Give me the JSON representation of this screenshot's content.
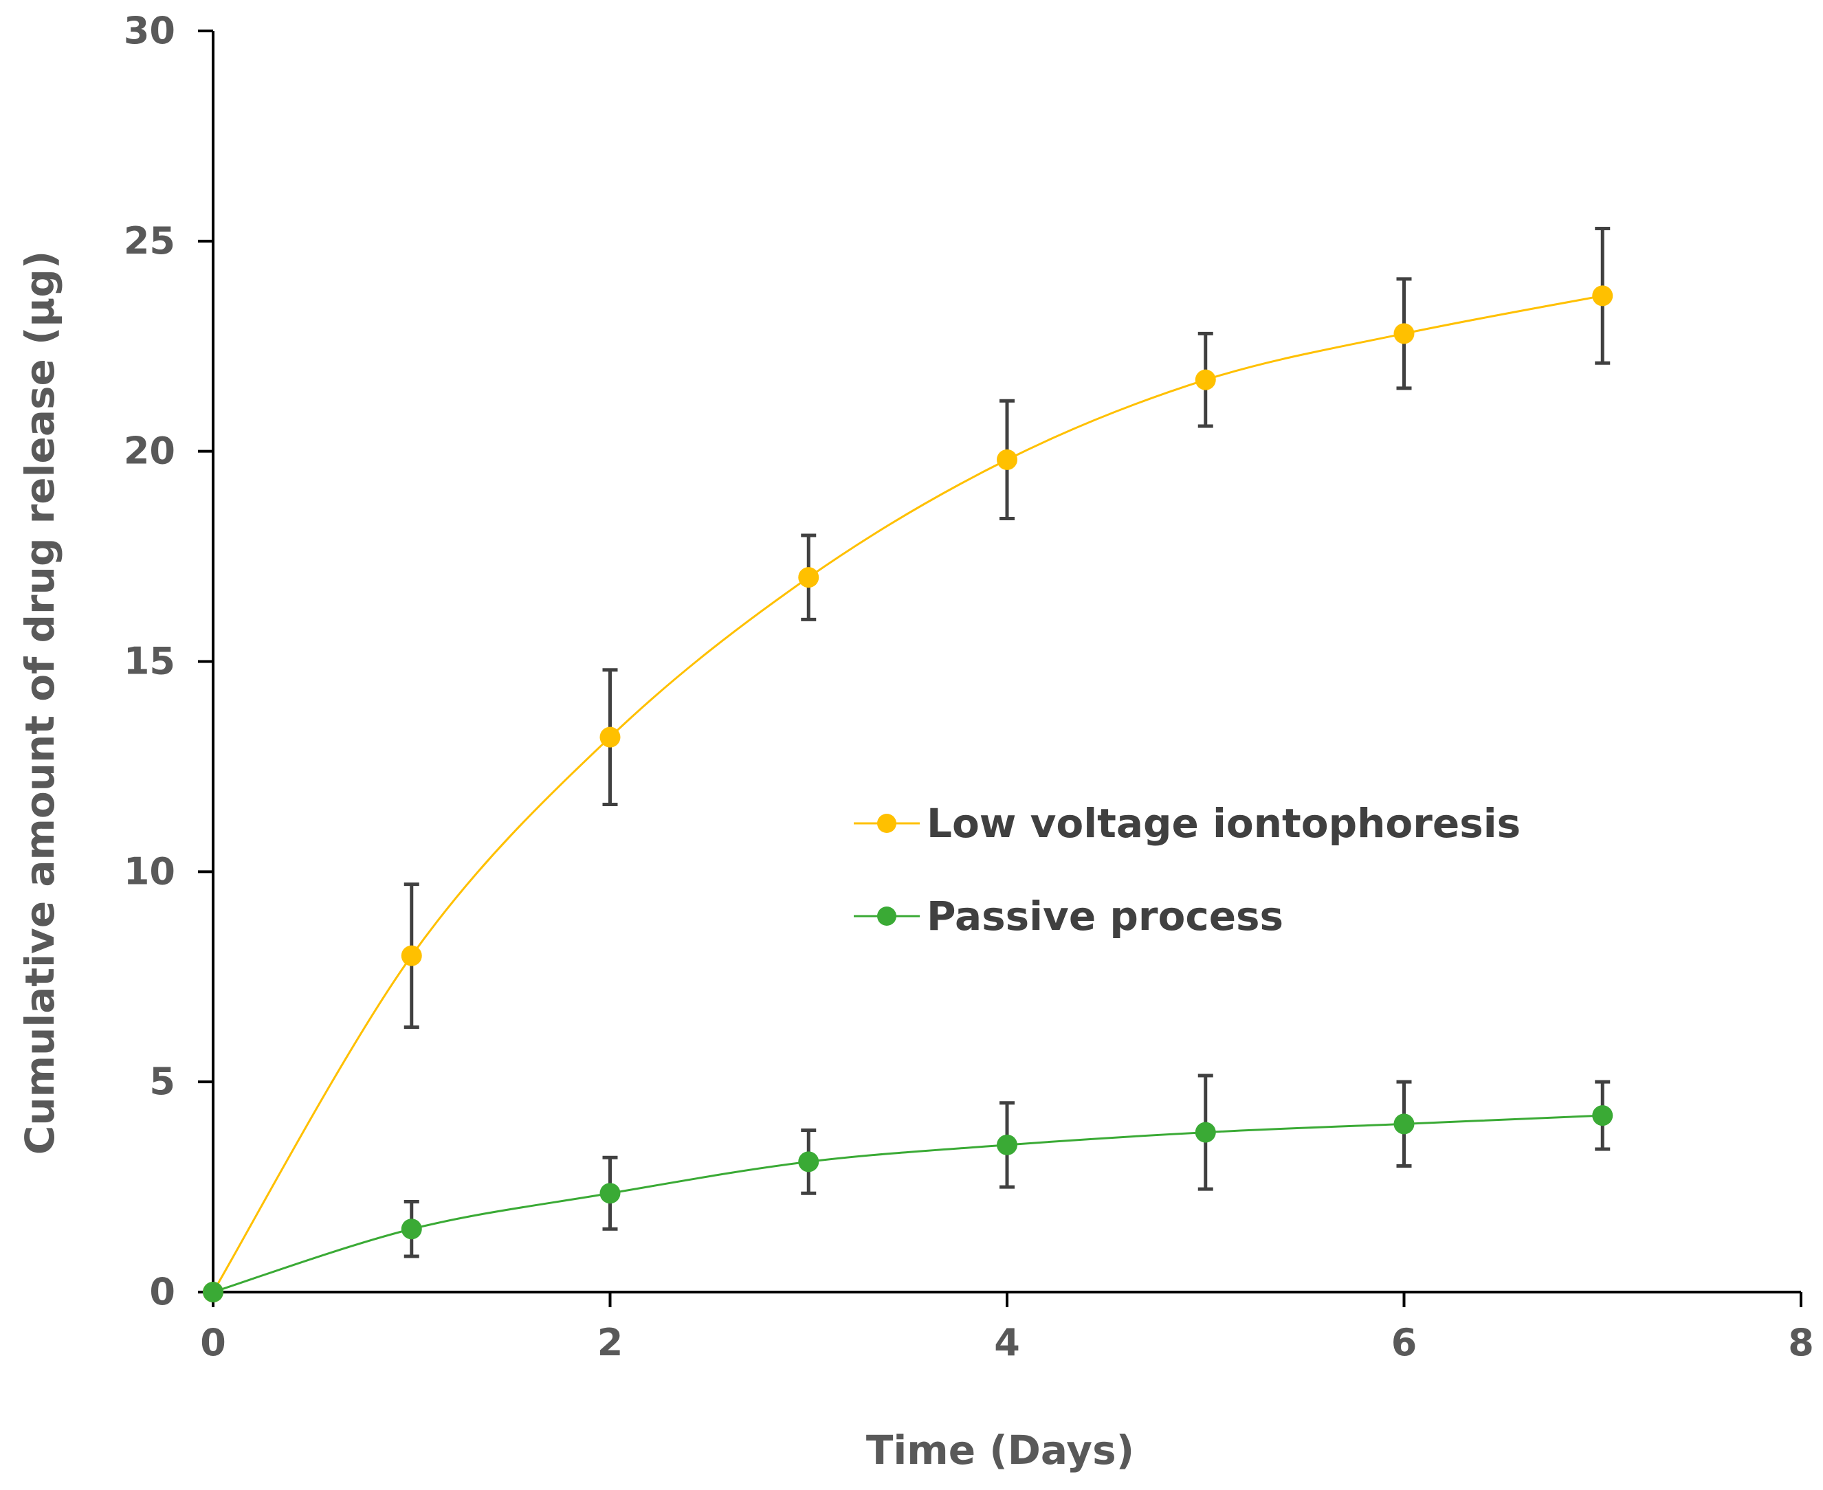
{
  "chart_data": {
    "type": "scatter",
    "title": "",
    "xlabel": "Time (Days)",
    "ylabel": "Cumulative amount of drug release (µg)",
    "xlim": [
      0,
      8
    ],
    "ylim": [
      0,
      30
    ],
    "xticks": [
      "0",
      "2",
      "4",
      "6",
      "8"
    ],
    "yticks": [
      "0",
      "5",
      "10",
      "15",
      "20",
      "25",
      "30"
    ],
    "grid": false,
    "legend_position": "center-right",
    "smooth_lines": true,
    "series": [
      {
        "name": "Low voltage iontophoresis",
        "color": "#FFC000",
        "x": [
          0,
          1,
          2,
          3,
          4,
          5,
          6,
          7
        ],
        "y": [
          0,
          8.0,
          13.2,
          17.0,
          19.8,
          21.7,
          22.8,
          23.7
        ],
        "error": [
          0,
          1.7,
          1.6,
          1.0,
          1.4,
          1.1,
          1.3,
          1.6
        ]
      },
      {
        "name": "Passive process",
        "color": "#3AAA35",
        "x": [
          0,
          1,
          2,
          3,
          4,
          5,
          6,
          7
        ],
        "y": [
          0,
          1.5,
          2.35,
          3.1,
          3.5,
          3.8,
          4.0,
          4.2
        ],
        "error": [
          0,
          0.65,
          0.85,
          0.75,
          1.0,
          1.35,
          1.0,
          0.8
        ]
      }
    ]
  }
}
